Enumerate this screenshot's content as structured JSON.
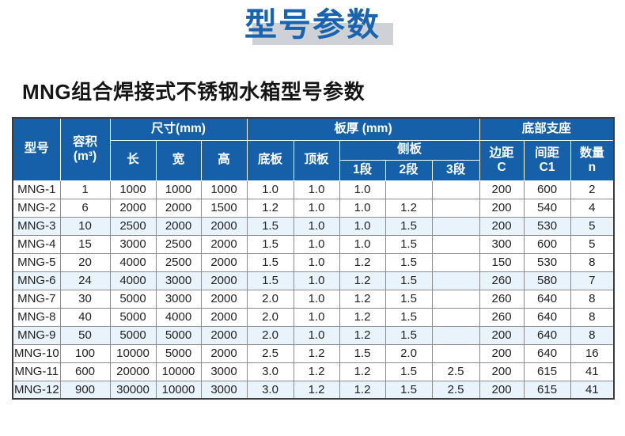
{
  "page": {
    "title": "型号参数",
    "subtitle": "MNG组合焊接式不锈钢水箱型号参数"
  },
  "table": {
    "header": {
      "model": "型号",
      "volume": [
        "容积",
        "(m³)"
      ],
      "size_group": "尺寸(mm)",
      "length": "长",
      "width": "宽",
      "height": "高",
      "thickness_group": "板厚 (mm)",
      "bottom_plate": "底板",
      "top_plate": "顶板",
      "side_plate_group": "侧板",
      "side_seg_1": "1段",
      "side_seg_2": "2段",
      "side_seg_3": "3段",
      "support_group": "底部支座",
      "edge_distance": [
        "边距",
        "C"
      ],
      "spacing": [
        "间距",
        "C1"
      ],
      "quantity": [
        "数量",
        "n"
      ]
    },
    "rows": [
      [
        "MNG-1",
        "1",
        "1000",
        "1000",
        "1000",
        "1.0",
        "1.0",
        "1.0",
        "",
        "",
        "200",
        "600",
        "2"
      ],
      [
        "MNG-2",
        "6",
        "2000",
        "2000",
        "1500",
        "1.2",
        "1.0",
        "1.0",
        "1.2",
        "",
        "200",
        "540",
        "4"
      ],
      [
        "MNG-3",
        "10",
        "2500",
        "2000",
        "2000",
        "1.5",
        "1.0",
        "1.0",
        "1.5",
        "",
        "200",
        "530",
        "5"
      ],
      [
        "MNG-4",
        "15",
        "3000",
        "2500",
        "2000",
        "1.5",
        "1.0",
        "1.0",
        "1.5",
        "",
        "300",
        "600",
        "5"
      ],
      [
        "MNG-5",
        "20",
        "4000",
        "2500",
        "2000",
        "1.5",
        "1.0",
        "1.2",
        "1.5",
        "",
        "150",
        "530",
        "8"
      ],
      [
        "MNG-6",
        "24",
        "4000",
        "3000",
        "2000",
        "1.5",
        "1.0",
        "1.2",
        "1.5",
        "",
        "260",
        "580",
        "7"
      ],
      [
        "MNG-7",
        "30",
        "5000",
        "3000",
        "2000",
        "2.0",
        "1.0",
        "1.2",
        "1.5",
        "",
        "260",
        "640",
        "8"
      ],
      [
        "MNG-8",
        "40",
        "5000",
        "4000",
        "2000",
        "2.0",
        "1.0",
        "1.2",
        "1.5",
        "",
        "260",
        "640",
        "8"
      ],
      [
        "MNG-9",
        "50",
        "5000",
        "5000",
        "2000",
        "2.0",
        "1.0",
        "1.2",
        "1.5",
        "",
        "200",
        "640",
        "8"
      ],
      [
        "MNG-10",
        "100",
        "10000",
        "5000",
        "2000",
        "2.5",
        "1.2",
        "1.5",
        "2.0",
        "",
        "200",
        "640",
        "16"
      ],
      [
        "MNG-11",
        "600",
        "20000",
        "10000",
        "3000",
        "3.0",
        "1.2",
        "1.2",
        "1.5",
        "2.5",
        "200",
        "615",
        "41"
      ],
      [
        "MNG-12",
        "900",
        "30000",
        "10000",
        "3000",
        "3.0",
        "1.2",
        "1.2",
        "1.5",
        "2.5",
        "200",
        "615",
        "41"
      ]
    ],
    "highlighted_rows": [
      2,
      5,
      8,
      11
    ]
  },
  "colors": {
    "title_blue": "#1a63ae",
    "title_bar_gray": "#ced2d6",
    "header_bg": "#1560a8",
    "header_text": "#ffffff",
    "row_highlight": "#e9f3fb",
    "body_text": "#222222",
    "outer_border": "#3c3c3c",
    "grid_line": "#8c8c8c"
  }
}
